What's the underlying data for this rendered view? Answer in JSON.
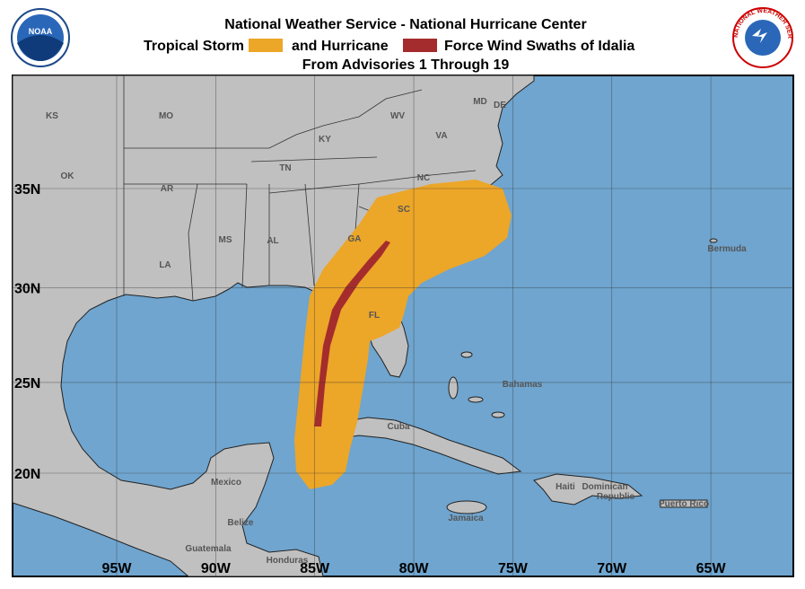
{
  "header": {
    "title": "National Weather Service - National Hurricane Center",
    "legend": {
      "tropical_storm": "Tropical Storm",
      "hurricane": "and Hurricane",
      "suffix": "Force Wind Swaths of Idalia"
    },
    "subtitle": "From Advisories 1 Through 19"
  },
  "logos": {
    "noaa": "NOAA",
    "nws": "NATIONAL WEATHER SERVICE"
  },
  "map": {
    "longitudes": [
      {
        "value": -95,
        "label": "95W"
      },
      {
        "value": -90,
        "label": "90W"
      },
      {
        "value": -85,
        "label": "85W"
      },
      {
        "value": -80,
        "label": "80W"
      },
      {
        "value": -75,
        "label": "75W"
      },
      {
        "value": -70,
        "label": "70W"
      },
      {
        "value": -65,
        "label": "65W"
      }
    ],
    "latitudes": [
      {
        "value": 35,
        "label": "35N"
      },
      {
        "value": 30,
        "label": "30N"
      },
      {
        "value": 25,
        "label": "25N"
      },
      {
        "value": 20,
        "label": "20N"
      }
    ],
    "labels": [
      "KS",
      "MO",
      "WV",
      "VA",
      "KY",
      "OK",
      "TN",
      "NC",
      "AR",
      "SC",
      "MS",
      "AL",
      "GA",
      "LA",
      "FL",
      "Bermuda",
      "Bahamas",
      "Cuba",
      "Mexico",
      "Haiti",
      "Dominican",
      "Republic",
      "Jamaica",
      "Puerto Rico",
      "Belize",
      "Guatemala",
      "Honduras",
      "MD",
      "DE"
    ]
  }
}
